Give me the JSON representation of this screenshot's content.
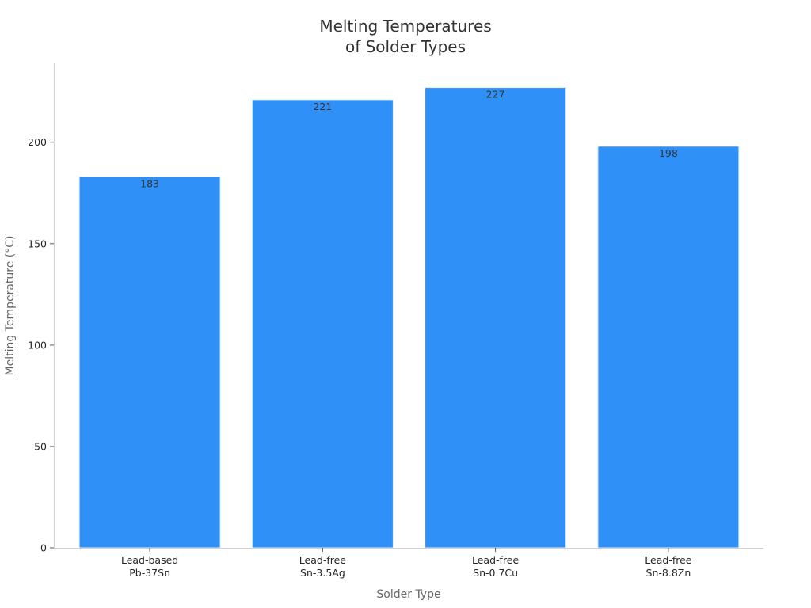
{
  "chart_data": {
    "type": "bar",
    "title": [
      "Melting Temperatures",
      "of Solder Types"
    ],
    "xlabel": "Solder Type",
    "ylabel": "Melting Temperature (°C)",
    "categories": [
      [
        "Lead-based",
        "Pb-37Sn"
      ],
      [
        "Lead-free",
        "Sn-3.5Ag"
      ],
      [
        "Lead-free",
        "Sn-0.7Cu"
      ],
      [
        "Lead-free",
        "Sn-8.8Zn"
      ]
    ],
    "values": [
      183,
      221,
      227,
      198
    ],
    "data_labels": [
      "183",
      "221",
      "227",
      "198"
    ],
    "yticks": [
      0,
      50,
      100,
      150,
      200
    ],
    "ylim": [
      0,
      238.35
    ],
    "bar_color": "#2f91f8",
    "grid": false,
    "legend": "none"
  }
}
